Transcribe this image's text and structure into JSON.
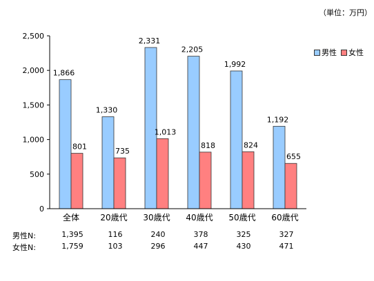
{
  "unit_label": "（単位：万円）",
  "chart_data": {
    "type": "bar",
    "categories": [
      "全体",
      "20歳代",
      "30歳代",
      "40歳代",
      "50歳代",
      "60歳代"
    ],
    "series": [
      {
        "name": "男性",
        "values": [
          1866,
          1330,
          2331,
          2205,
          1992,
          1192
        ],
        "color": "#99ccff",
        "data_labels": [
          "1,866",
          "1,330",
          "2,331",
          "2,205",
          "1,992",
          "1,192"
        ]
      },
      {
        "name": "女性",
        "values": [
          801,
          735,
          1013,
          818,
          824,
          655
        ],
        "color": "#ff8080",
        "data_labels": [
          "801",
          "735",
          "1,013",
          "818",
          "824",
          "655"
        ]
      }
    ],
    "ylim": [
      0,
      2500
    ],
    "yticks": [
      0,
      500,
      1000,
      1500,
      2000,
      2500
    ],
    "ytick_labels": [
      "0",
      "500",
      "1,000",
      "1,500",
      "2,000",
      "2,500"
    ],
    "grid": false,
    "legend_position": "top-right"
  },
  "n_table": [
    {
      "label": "男性N:",
      "values": [
        "1,395",
        "116",
        "240",
        "378",
        "325",
        "327"
      ]
    },
    {
      "label": "女性N:",
      "values": [
        "1,759",
        "103",
        "296",
        "447",
        "430",
        "471"
      ]
    }
  ]
}
